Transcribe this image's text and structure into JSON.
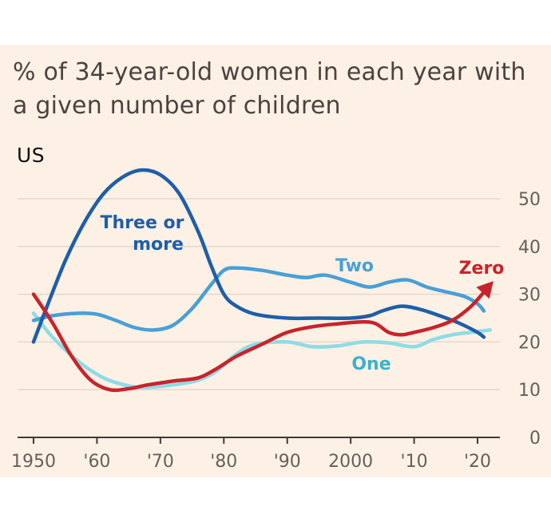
{
  "title": {
    "line1": "% of 34-year-old women in each year with",
    "line2": "a given number of children"
  },
  "region": "US",
  "chart_data": {
    "type": "line",
    "title": "% of 34-year-old women in each year with a given number of children",
    "subtitle": "US",
    "xlim": [
      1950,
      2023
    ],
    "ylim": [
      0,
      55
    ],
    "x_ticks": [
      1950,
      1960,
      1970,
      1980,
      1990,
      2000,
      2010,
      2020
    ],
    "x_tick_labels": [
      "1950",
      "'60",
      "'70",
      "'80",
      "'90",
      "2000",
      "'10",
      "'20"
    ],
    "y_ticks": [
      0,
      10,
      20,
      30,
      40,
      50
    ],
    "y_tick_labels": [
      "0",
      "10",
      "20",
      "30",
      "40",
      "50"
    ],
    "grid": true,
    "series": [
      {
        "name": "Three or more",
        "color": "#1f5ea8",
        "points": [
          [
            1950,
            20
          ],
          [
            1952,
            27
          ],
          [
            1955,
            37
          ],
          [
            1958,
            45
          ],
          [
            1961,
            51
          ],
          [
            1964,
            54.5
          ],
          [
            1967,
            56
          ],
          [
            1970,
            55
          ],
          [
            1973,
            51
          ],
          [
            1976,
            43
          ],
          [
            1978,
            36
          ],
          [
            1980,
            30
          ],
          [
            1982,
            27.5
          ],
          [
            1985,
            25.8
          ],
          [
            1990,
            25
          ],
          [
            1995,
            25
          ],
          [
            2000,
            25
          ],
          [
            2003,
            25.5
          ],
          [
            2005,
            26.5
          ],
          [
            2008,
            27.5
          ],
          [
            2011,
            26.8
          ],
          [
            2014,
            25.5
          ],
          [
            2017,
            24
          ],
          [
            2020,
            22
          ],
          [
            2021,
            21
          ]
        ]
      },
      {
        "name": "Two",
        "color": "#4a9fd6",
        "points": [
          [
            1950,
            24.5
          ],
          [
            1953,
            25.5
          ],
          [
            1957,
            26
          ],
          [
            1960,
            25.8
          ],
          [
            1963,
            24.5
          ],
          [
            1966,
            23
          ],
          [
            1969,
            22.5
          ],
          [
            1972,
            23.5
          ],
          [
            1975,
            27
          ],
          [
            1978,
            32
          ],
          [
            1980,
            35
          ],
          [
            1982,
            35.5
          ],
          [
            1986,
            35
          ],
          [
            1990,
            34
          ],
          [
            1993,
            33.5
          ],
          [
            1996,
            34
          ],
          [
            2000,
            32.5
          ],
          [
            2003,
            31.5
          ],
          [
            2006,
            32.5
          ],
          [
            2009,
            33
          ],
          [
            2012,
            31.5
          ],
          [
            2015,
            30.5
          ],
          [
            2018,
            29.5
          ],
          [
            2020,
            28
          ],
          [
            2021,
            26.5
          ]
        ]
      },
      {
        "name": "One",
        "color": "#8fdbe6",
        "points": [
          [
            1950,
            26
          ],
          [
            1953,
            21
          ],
          [
            1957,
            16
          ],
          [
            1961,
            12.5
          ],
          [
            1965,
            10.8
          ],
          [
            1968,
            10.5
          ],
          [
            1972,
            11
          ],
          [
            1976,
            12
          ],
          [
            1979,
            14
          ],
          [
            1982,
            17.5
          ],
          [
            1985,
            19.5
          ],
          [
            1990,
            20
          ],
          [
            1994,
            19
          ],
          [
            1998,
            19.2
          ],
          [
            2002,
            20
          ],
          [
            2006,
            19.8
          ],
          [
            2010,
            19
          ],
          [
            2013,
            20.5
          ],
          [
            2016,
            21.5
          ],
          [
            2019,
            22
          ],
          [
            2022,
            22.5
          ]
        ]
      },
      {
        "name": "Zero",
        "color": "#c8232c",
        "points": [
          [
            1950,
            30
          ],
          [
            1953,
            24
          ],
          [
            1956,
            17
          ],
          [
            1959,
            12
          ],
          [
            1962,
            10
          ],
          [
            1965,
            10.2
          ],
          [
            1968,
            11
          ],
          [
            1972,
            11.8
          ],
          [
            1976,
            12.5
          ],
          [
            1979,
            14.5
          ],
          [
            1982,
            17
          ],
          [
            1986,
            19.5
          ],
          [
            1990,
            22
          ],
          [
            1994,
            23.2
          ],
          [
            1998,
            23.8
          ],
          [
            2002,
            24.2
          ],
          [
            2004,
            23.8
          ],
          [
            2006,
            22
          ],
          [
            2008,
            21.5
          ],
          [
            2010,
            22
          ],
          [
            2013,
            23
          ],
          [
            2016,
            24.5
          ],
          [
            2019,
            27.5
          ],
          [
            2022,
            32
          ]
        ]
      }
    ],
    "labels": {
      "three_a": "Three or",
      "three_b": "more",
      "two": "Two",
      "one": "One",
      "zero": "Zero"
    }
  }
}
